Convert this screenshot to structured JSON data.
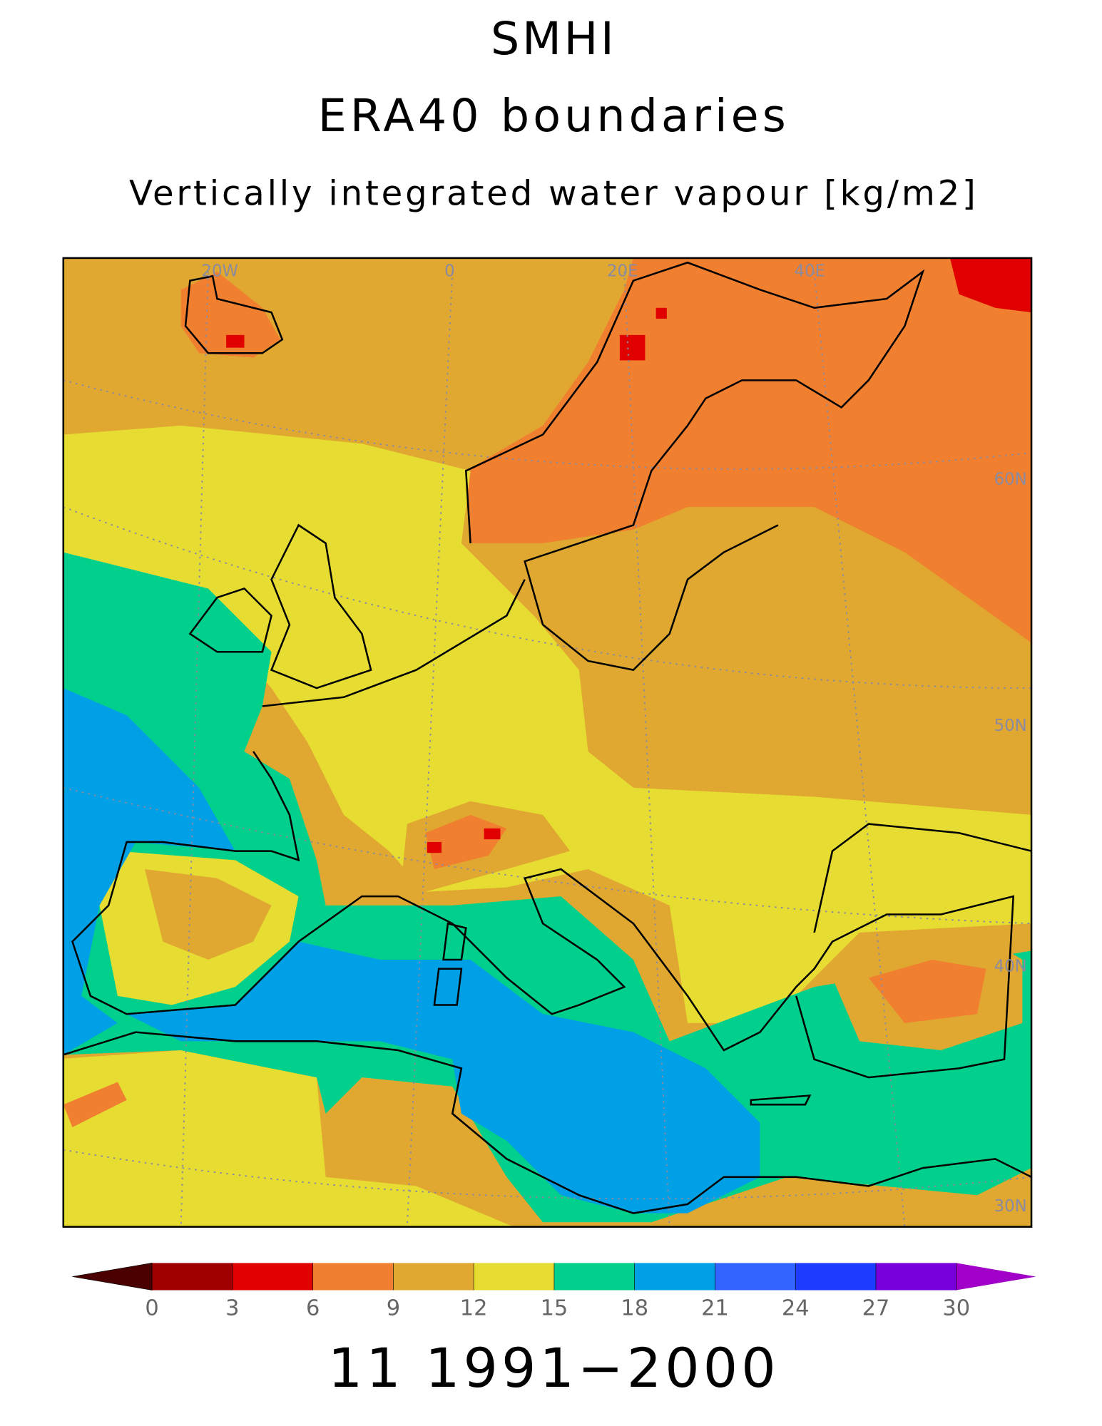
{
  "header": {
    "title": "SMHI",
    "subtitle": "ERA40 boundaries",
    "variable": "Vertically integrated water vapour [kg/m2]"
  },
  "map": {
    "lon_labels": [
      "20W",
      "0",
      "20E",
      "40E"
    ],
    "lat_labels": [
      "60N",
      "50N",
      "40N",
      "30N"
    ]
  },
  "colorbar": {
    "ticks": [
      0,
      3,
      6,
      9,
      12,
      15,
      18,
      21,
      24,
      27,
      30
    ],
    "colors": [
      "#4a0000",
      "#a00000",
      "#e00000",
      "#f08030",
      "#e0a830",
      "#e6dc32",
      "#00d08c",
      "#00a0e6",
      "#3264ff",
      "#1e3cff",
      "#7800dc",
      "#a000c8"
    ]
  },
  "footer": {
    "period": "11 1991−2000"
  }
}
